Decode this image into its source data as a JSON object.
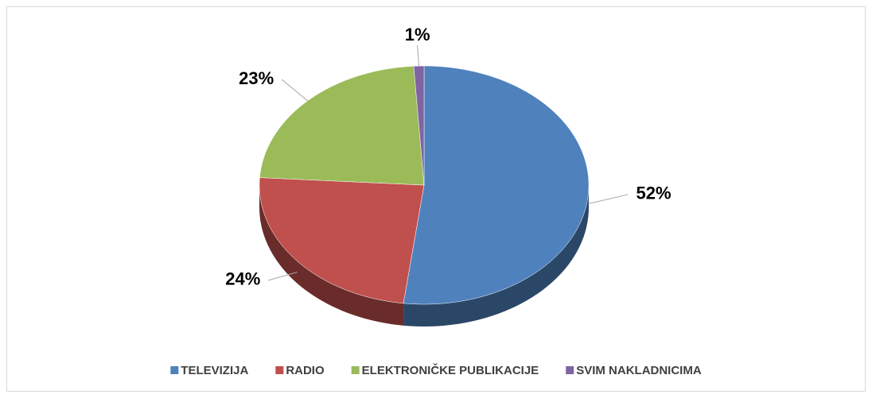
{
  "chart_data": {
    "type": "pie",
    "categories": [
      "TELEVIZIJA",
      "RADIO",
      "ELEKTRONIČKE PUBLIKACIJE",
      "SVIM NAKLADNICIMA"
    ],
    "values": [
      52,
      24,
      23,
      1
    ],
    "value_labels": [
      "52%",
      "24%",
      "23%",
      "1%"
    ],
    "colors": [
      "#4f81bd",
      "#c0504d",
      "#9bbb59",
      "#8064a2"
    ],
    "legend": "bottom"
  }
}
